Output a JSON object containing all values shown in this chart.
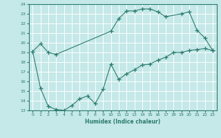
{
  "xlabel": "Humidex (Indice chaleur)",
  "xlim": [
    -0.5,
    23.5
  ],
  "ylim": [
    13,
    24
  ],
  "yticks": [
    13,
    14,
    15,
    16,
    17,
    18,
    19,
    20,
    21,
    22,
    23,
    24
  ],
  "xticks": [
    0,
    1,
    2,
    3,
    4,
    5,
    6,
    7,
    8,
    9,
    10,
    11,
    12,
    13,
    14,
    15,
    16,
    17,
    18,
    19,
    20,
    21,
    22,
    23
  ],
  "line_color": "#2a7a6e",
  "bg_color": "#c5e8e8",
  "grid_color": "#ffffff",
  "series1_x": [
    0,
    1,
    2,
    3,
    10,
    11,
    12,
    13,
    14,
    15,
    16,
    17,
    19,
    20,
    21,
    22,
    23
  ],
  "series1_y": [
    19.1,
    19.9,
    19.0,
    18.8,
    21.2,
    22.5,
    23.3,
    23.3,
    23.5,
    23.5,
    23.2,
    22.7,
    23.0,
    23.2,
    21.3,
    20.5,
    19.2
  ],
  "series2_x": [
    0,
    1,
    2,
    3,
    4,
    5,
    6,
    7,
    8,
    9,
    10,
    11,
    12,
    13,
    14,
    15,
    16,
    17,
    18,
    19,
    20,
    21,
    22,
    23
  ],
  "series2_y": [
    19.1,
    15.3,
    13.4,
    13.1,
    13.0,
    13.5,
    14.2,
    14.5,
    13.7,
    15.2,
    17.8,
    16.2,
    16.8,
    17.2,
    17.7,
    17.8,
    18.2,
    18.5,
    19.0,
    19.0,
    19.2,
    19.3,
    19.4,
    19.2
  ]
}
